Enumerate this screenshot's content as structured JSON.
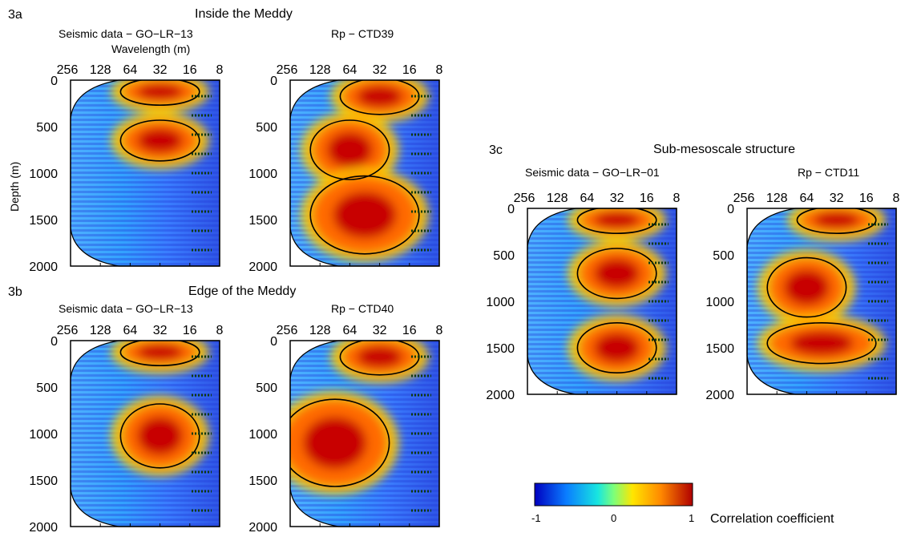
{
  "panels": {
    "p3a": {
      "label": "3a",
      "title": "Inside the Meddy",
      "left_title": "Seismic data − GO−LR−13",
      "right_title": "Rp − CTD39",
      "x_axis_label": "Wavelength (m)",
      "y_axis_label": "Depth (m)"
    },
    "p3b": {
      "label": "3b",
      "title": "Edge of the Meddy",
      "left_title": "Seismic data − GO−LR−13",
      "right_title": "Rp − CTD40"
    },
    "p3c": {
      "label": "3c",
      "title": "Sub-mesoscale structure",
      "left_title": "Seismic data − GO−LR−01",
      "right_title": "Rp − CTD11"
    }
  },
  "colorbar": {
    "ticks": [
      "-1",
      "0",
      "1"
    ],
    "label": "Correlation coefficient"
  },
  "chart_data": [
    {
      "type": "heatmap",
      "panel": "3a",
      "title": "Seismic data − GO−LR−13",
      "xlabel": "Wavelength (m)",
      "ylabel": "Depth (m)",
      "x_ticks": [
        "256",
        "128",
        "64",
        "32",
        "16",
        "8"
      ],
      "y_ticks": [
        "0",
        "500",
        "1000",
        "1500",
        "2000"
      ],
      "ylim": [
        0,
        2000
      ],
      "clim": [
        -1,
        1
      ],
      "high_corr_regions": [
        {
          "wavelength_m": [
            16,
            64
          ],
          "depth_m": [
            50,
            200
          ]
        },
        {
          "wavelength_m": [
            16,
            64
          ],
          "depth_m": [
            500,
            800
          ]
        }
      ]
    },
    {
      "type": "heatmap",
      "panel": "3a",
      "title": "Rp − CTD39",
      "x_ticks": [
        "256",
        "128",
        "64",
        "32",
        "16",
        "8"
      ],
      "y_ticks": [
        "0",
        "500",
        "1000",
        "1500",
        "2000"
      ],
      "ylim": [
        0,
        2000
      ],
      "clim": [
        -1,
        1
      ],
      "high_corr_regions": [
        {
          "wavelength_m": [
            16,
            64
          ],
          "depth_m": [
            50,
            300
          ]
        },
        {
          "wavelength_m": [
            32,
            128
          ],
          "depth_m": [
            500,
            1000
          ]
        },
        {
          "wavelength_m": [
            16,
            128
          ],
          "depth_m": [
            1100,
            1800
          ]
        }
      ]
    },
    {
      "type": "heatmap",
      "panel": "3b",
      "title": "Seismic data − GO−LR−13",
      "x_ticks": [
        "256",
        "128",
        "64",
        "32",
        "16",
        "8"
      ],
      "y_ticks": [
        "0",
        "500",
        "1000",
        "1500",
        "2000"
      ],
      "ylim": [
        0,
        2000
      ],
      "clim": [
        -1,
        1
      ],
      "high_corr_regions": [
        {
          "wavelength_m": [
            16,
            64
          ],
          "depth_m": [
            50,
            200
          ]
        },
        {
          "wavelength_m": [
            16,
            64
          ],
          "depth_m": [
            750,
            1300
          ]
        }
      ]
    },
    {
      "type": "heatmap",
      "panel": "3b",
      "title": "Rp − CTD40",
      "x_ticks": [
        "256",
        "128",
        "64",
        "32",
        "16",
        "8"
      ],
      "y_ticks": [
        "0",
        "500",
        "1000",
        "1500",
        "2000"
      ],
      "ylim": [
        0,
        2000
      ],
      "clim": [
        -1,
        1
      ],
      "high_corr_regions": [
        {
          "wavelength_m": [
            16,
            64
          ],
          "depth_m": [
            50,
            300
          ]
        },
        {
          "wavelength_m": [
            32,
            256
          ],
          "depth_m": [
            700,
            1500
          ]
        }
      ]
    },
    {
      "type": "heatmap",
      "panel": "3c",
      "title": "Seismic data − GO−LR−01",
      "x_ticks": [
        "256",
        "128",
        "64",
        "32",
        "16",
        "8"
      ],
      "y_ticks": [
        "0",
        "500",
        "1000",
        "1500",
        "2000"
      ],
      "ylim": [
        0,
        2000
      ],
      "clim": [
        -1,
        1
      ],
      "high_corr_regions": [
        {
          "wavelength_m": [
            16,
            64
          ],
          "depth_m": [
            50,
            200
          ]
        },
        {
          "wavelength_m": [
            16,
            64
          ],
          "depth_m": [
            500,
            900
          ]
        },
        {
          "wavelength_m": [
            16,
            64
          ],
          "depth_m": [
            1300,
            1700
          ]
        }
      ]
    },
    {
      "type": "heatmap",
      "panel": "3c",
      "title": "Rp − CTD11",
      "x_ticks": [
        "256",
        "128",
        "64",
        "32",
        "16",
        "8"
      ],
      "y_ticks": [
        "0",
        "500",
        "1000",
        "1500",
        "2000"
      ],
      "ylim": [
        0,
        2000
      ],
      "clim": [
        -1,
        1
      ],
      "high_corr_regions": [
        {
          "wavelength_m": [
            16,
            64
          ],
          "depth_m": [
            50,
            200
          ]
        },
        {
          "wavelength_m": [
            32,
            128
          ],
          "depth_m": [
            600,
            1100
          ]
        },
        {
          "wavelength_m": [
            16,
            128
          ],
          "depth_m": [
            1300,
            1600
          ]
        }
      ]
    }
  ]
}
